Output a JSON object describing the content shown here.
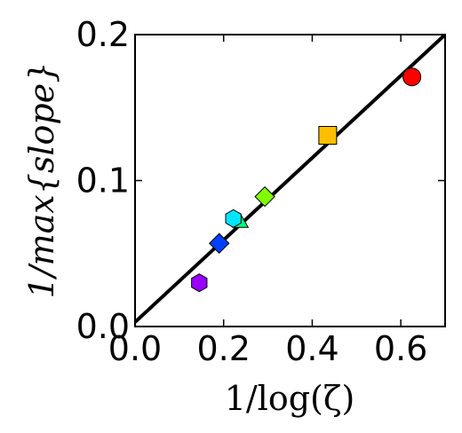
{
  "chart_data": {
    "type": "scatter",
    "title": "",
    "xlabel": "1/log(ζ)",
    "ylabel": "1/max{slope}",
    "xlim": [
      0,
      0.7
    ],
    "ylim": [
      0,
      0.2
    ],
    "xticks": [
      "0.0",
      "0.2",
      "0.4",
      "0.6"
    ],
    "xtick_values": [
      0,
      0.2,
      0.4,
      0.6
    ],
    "yticks": [
      "0.0",
      "0.1",
      "0.2"
    ],
    "ytick_values": [
      0,
      0.1,
      0.2
    ],
    "grid": false,
    "points": [
      {
        "x": 0.625,
        "y": 0.171,
        "marker": "circle",
        "color": "#ff0000"
      },
      {
        "x": 0.435,
        "y": 0.131,
        "marker": "square",
        "color": "#ffbf00"
      },
      {
        "x": 0.293,
        "y": 0.089,
        "marker": "diamond",
        "color": "#80ff00"
      },
      {
        "x": 0.238,
        "y": 0.071,
        "marker": "triangle",
        "color": "#00ff80"
      },
      {
        "x": 0.222,
        "y": 0.074,
        "marker": "hexagon",
        "color": "#00e5ff"
      },
      {
        "x": 0.19,
        "y": 0.057,
        "marker": "diamond",
        "color": "#0040ff"
      },
      {
        "x": 0.145,
        "y": 0.03,
        "marker": "hexagon",
        "color": "#9900ff"
      }
    ],
    "fit_line": {
      "x": [
        0,
        0.7
      ],
      "y": [
        0.003,
        0.2
      ],
      "color": "#000000"
    }
  }
}
